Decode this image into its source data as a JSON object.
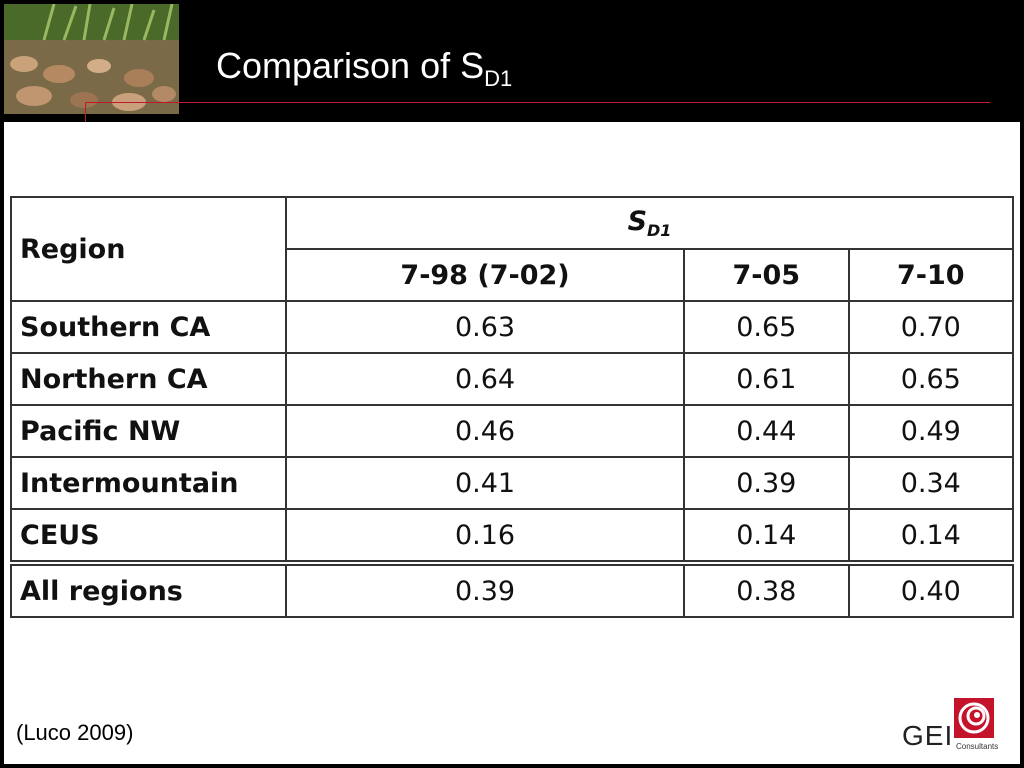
{
  "header": {
    "title": "Comparison of S",
    "title_sub": "D1"
  },
  "table": {
    "region_header": "Region",
    "group_header": "S",
    "group_header_sub": "D1",
    "columns": [
      "7-98 (7-02)",
      "7-05",
      "7-10"
    ],
    "rows": [
      {
        "region": "Southern CA",
        "values": [
          "0.63",
          "0.65",
          "0.70"
        ]
      },
      {
        "region": "Northern CA",
        "values": [
          "0.64",
          "0.61",
          "0.65"
        ]
      },
      {
        "region": "Pacific NW",
        "values": [
          "0.46",
          "0.44",
          "0.49"
        ]
      },
      {
        "region": "Intermountain",
        "values": [
          "0.41",
          "0.39",
          "0.34"
        ]
      },
      {
        "region": "CEUS",
        "values": [
          "0.16",
          "0.14",
          "0.14"
        ]
      },
      {
        "region": "All regions",
        "values": [
          "0.39",
          "0.38",
          "0.40"
        ]
      }
    ]
  },
  "footer": {
    "source": "(Luco 2009)",
    "logo_text": "GEI",
    "logo_sub": "Consultants"
  },
  "colors": {
    "accent": "#c0182a",
    "logo_red": "#c4142c"
  }
}
